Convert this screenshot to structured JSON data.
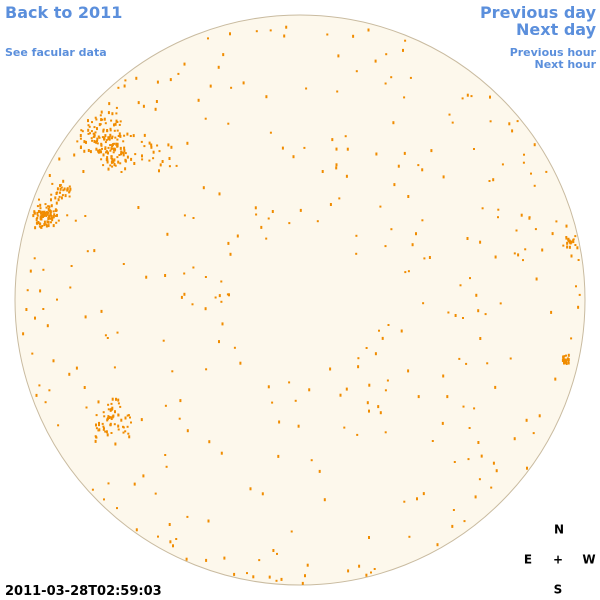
{
  "nav": {
    "back": "Back to 2011",
    "facular": "See facular data",
    "previous_day": "Previous day",
    "next_day": "Next day",
    "previous_hour": "Previous hour",
    "next_hour": "Next hour"
  },
  "timestamp": "2011-03-28T02:59:03",
  "compass": {
    "north": "N",
    "east": "E",
    "center": "+",
    "west": "W",
    "south": "S"
  }
}
